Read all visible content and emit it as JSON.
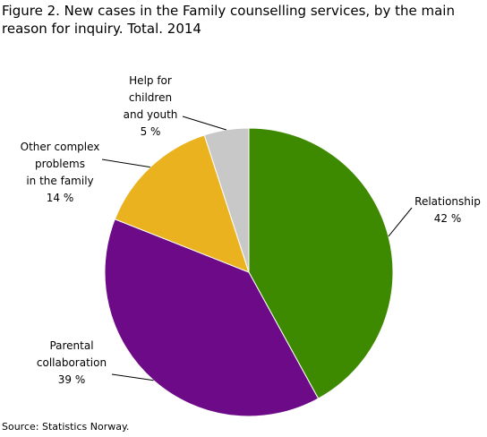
{
  "chart_data": {
    "type": "pie",
    "title": "Figure 2. New cases in the Family counselling services, by the main reason for inquiry. Total. 2014",
    "categories": [
      "Relationship",
      "Parental\ncollaboration",
      "Other complex\nproblems\nin the family",
      "Help for\nchildren\nand youth"
    ],
    "values": [
      42,
      39,
      14,
      5
    ],
    "value_labels": [
      "42 %",
      "39 %",
      "14 %",
      "5 %"
    ],
    "colors": [
      "#3d8a00",
      "#6c0a87",
      "#ebb220",
      "#c8c8c8"
    ],
    "source": "Source: Statistics Norway."
  }
}
